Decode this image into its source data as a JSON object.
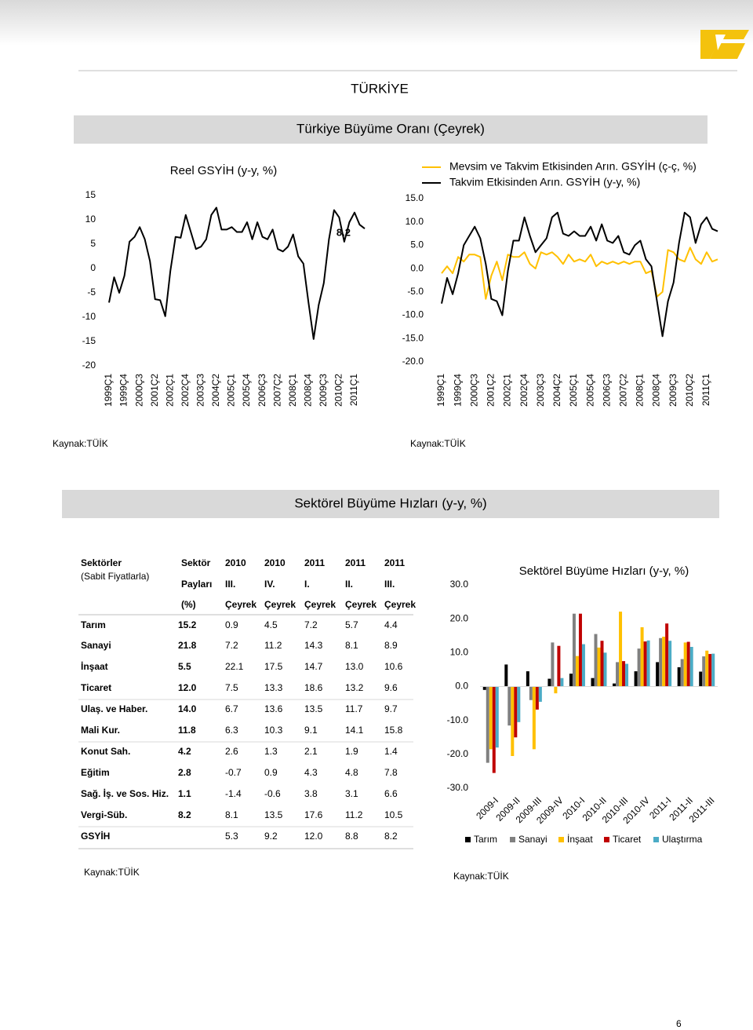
{
  "header": {
    "title": "TÜRKİYE"
  },
  "sections": [
    "Türkiye Büyüme Oranı (Çeyrek)",
    "Sektörel Büyüme Hızları (y-y, %)"
  ],
  "chart_data": [
    {
      "type": "line",
      "title": "Reel GSYİH (y-y, %)",
      "categories": [
        "1999Ç1",
        null,
        null,
        "1999Ç4",
        null,
        null,
        "2000Ç3",
        null,
        null,
        "2001Ç2",
        null,
        null,
        "2002Ç1",
        null,
        null,
        "2002Ç4",
        null,
        null,
        "2003Ç3",
        null,
        null,
        "2004Ç2",
        null,
        null,
        "2005Ç1",
        null,
        null,
        "2005Ç4",
        null,
        null,
        "2006Ç3",
        null,
        null,
        "2007Ç2",
        null,
        null,
        "2008Ç1",
        null,
        null,
        "2008Ç4",
        null,
        null,
        "2009Ç3",
        null,
        null,
        "2010Ç2",
        null,
        null,
        "2011Ç1",
        null,
        null
      ],
      "series": [
        {
          "color": "#000000",
          "values": [
            -7.0,
            -1.8,
            -5.0,
            -1.5,
            5.5,
            6.5,
            8.5,
            6.0,
            1.5,
            -6.3,
            -6.5,
            -9.8,
            -0.5,
            6.5,
            6.3,
            11.0,
            7.5,
            4.0,
            4.5,
            6.0,
            11.0,
            12.5,
            8.0,
            8.0,
            8.5,
            7.5,
            7.5,
            9.5,
            6.0,
            9.5,
            6.5,
            6.0,
            8.0,
            4.0,
            3.5,
            4.5,
            7.0,
            2.5,
            1.0,
            -7.0,
            -14.5,
            -7.5,
            -3.0,
            6.0,
            12.0,
            10.5,
            5.5,
            9.5,
            11.5,
            9.0,
            8.2
          ]
        }
      ],
      "annotation": "8.2",
      "ylim": [
        -20,
        15
      ],
      "yticks": [
        15,
        10,
        5,
        0,
        -5,
        -10,
        -15,
        -20
      ]
    },
    {
      "type": "line",
      "categories": [
        "1999Ç1",
        null,
        null,
        "1999Ç4",
        null,
        null,
        "2000Ç3",
        null,
        null,
        "2001Ç2",
        null,
        null,
        "2002Ç1",
        null,
        null,
        "2002Ç4",
        null,
        null,
        "2003Ç3",
        null,
        null,
        "2004Ç2",
        null,
        null,
        "2005Ç1",
        null,
        null,
        "2005Ç4",
        null,
        null,
        "2006Ç3",
        null,
        null,
        "2007Ç2",
        null,
        null,
        "2008Ç1",
        null,
        null,
        "2008Ç4",
        null,
        null,
        "2009Ç3",
        null,
        null,
        "2010Ç2",
        null,
        null,
        "2011Ç1",
        null,
        null
      ],
      "series": [
        {
          "name": "Mevsim ve Takvim Etkisinden Arın. GSYİH (ç-ç, %)",
          "color": "#ffc000",
          "values": [
            -1.0,
            0.5,
            -1.0,
            2.5,
            1.5,
            3.0,
            3.0,
            2.5,
            -6.5,
            -1.5,
            1.5,
            -2.5,
            3.0,
            2.5,
            2.5,
            3.5,
            1.0,
            0.0,
            3.5,
            3.0,
            3.5,
            2.5,
            1.0,
            3.0,
            1.5,
            2.0,
            1.5,
            3.0,
            0.5,
            1.5,
            1.0,
            1.5,
            1.0,
            1.5,
            1.0,
            1.5,
            1.5,
            -1.0,
            -0.5,
            -6.0,
            -5.0,
            4.0,
            3.5,
            2.0,
            1.5,
            4.5,
            2.0,
            1.0,
            3.5,
            1.5,
            2.0
          ]
        },
        {
          "name": "Takvim Etkisinden Arın. GSYİH (y-y, %)",
          "color": "#000000",
          "values": [
            -7.5,
            -2.0,
            -5.5,
            -1.0,
            5.0,
            7.0,
            9.0,
            6.5,
            1.0,
            -6.5,
            -7.0,
            -10.0,
            -0.5,
            6.0,
            6.0,
            11.0,
            7.0,
            3.5,
            5.0,
            6.5,
            11.0,
            12.0,
            7.5,
            7.0,
            8.0,
            7.0,
            7.0,
            9.0,
            6.0,
            9.5,
            6.0,
            5.5,
            7.0,
            3.5,
            3.0,
            5.0,
            6.0,
            2.0,
            0.5,
            -7.0,
            -14.5,
            -7.0,
            -3.0,
            5.5,
            12.0,
            11.0,
            5.5,
            9.5,
            11.0,
            8.5,
            8.0
          ]
        }
      ],
      "legend": "top",
      "ylim": [
        -20,
        15
      ],
      "yticks": [
        {
          "value": 15,
          "label": "15.0"
        },
        {
          "value": 10,
          "label": "10.0"
        },
        {
          "value": 5,
          "label": "5.0"
        },
        {
          "value": 0,
          "label": "0.0"
        },
        {
          "value": -5,
          "label": "-5.0"
        },
        {
          "value": -10,
          "label": "-10.0"
        },
        {
          "value": -15,
          "label": "-15.0"
        },
        {
          "value": -20,
          "label": "-20.0"
        }
      ]
    },
    {
      "type": "bar",
      "title": "Sektörel Büyüme Hızları (y-y, %)",
      "categories": [
        "2009-I",
        "2009-II",
        "2009-III",
        "2009-IV",
        "2010-I",
        "2010-II",
        "2010-III",
        "2010-IV",
        "2011-I",
        "2011-II",
        "2011-III"
      ],
      "series": [
        {
          "name": "Tarım",
          "color": "#000000",
          "values": [
            -1.0,
            6.5,
            4.5,
            2.3,
            3.8,
            2.5,
            0.9,
            4.5,
            7.2,
            5.7,
            4.4
          ]
        },
        {
          "name": "Sanayi",
          "color": "#808080",
          "values": [
            -22.5,
            -11.5,
            -4.0,
            13.0,
            21.5,
            15.5,
            7.2,
            11.2,
            14.3,
            8.1,
            8.9
          ]
        },
        {
          "name": "İnşaat",
          "color": "#ffc000",
          "values": [
            -18.5,
            -20.5,
            -18.5,
            -2.0,
            9.0,
            11.5,
            22.1,
            17.5,
            14.7,
            13.0,
            10.6
          ]
        },
        {
          "name": "Ticaret",
          "color": "#c00000",
          "values": [
            -25.5,
            -15.0,
            -6.8,
            12.0,
            21.5,
            13.5,
            7.5,
            13.3,
            18.6,
            13.2,
            9.6
          ]
        },
        {
          "name": "Ulaştırma",
          "color": "#4bacc6",
          "values": [
            -18.0,
            -10.5,
            -4.5,
            2.5,
            12.5,
            10.0,
            6.7,
            13.6,
            13.5,
            11.7,
            9.7
          ]
        }
      ],
      "legend": "bottom",
      "ylim": [
        -30,
        30
      ],
      "yticks": [
        {
          "value": 30,
          "label": "30.0"
        },
        {
          "value": 20,
          "label": "20.0"
        },
        {
          "value": 10,
          "label": "10.0"
        },
        {
          "value": 0,
          "label": "0.0"
        },
        {
          "value": -10,
          "label": "-10.0"
        },
        {
          "value": -20,
          "label": "-20.0"
        },
        {
          "value": -30,
          "label": "-30.0"
        }
      ]
    }
  ],
  "table": {
    "header": [
      [
        "Sektörler",
        "(Sabit Fiyatlarla)"
      ],
      [
        "Sektör",
        "Payları",
        "(%)"
      ],
      [
        "2010",
        "III.",
        "Çeyrek"
      ],
      [
        "2010",
        "IV.",
        "Çeyrek"
      ],
      [
        "2011",
        "I.",
        "Çeyrek"
      ],
      [
        "2011",
        "II.",
        "Çeyrek"
      ],
      [
        "2011",
        "III.",
        "Çeyrek"
      ]
    ],
    "rows": [
      [
        "Tarım",
        "15.2",
        "0.9",
        "4.5",
        "7.2",
        "5.7",
        "4.4"
      ],
      [
        "Sanayi",
        "21.8",
        "7.2",
        "11.2",
        "14.3",
        "8.1",
        "8.9"
      ],
      [
        "İnşaat",
        "5.5",
        "22.1",
        "17.5",
        "14.7",
        "13.0",
        "10.6"
      ],
      [
        "Ticaret",
        "12.0",
        "7.5",
        "13.3",
        "18.6",
        "13.2",
        "9.6"
      ],
      [
        "Ulaş. ve Haber.",
        "14.0",
        "6.7",
        "13.6",
        "13.5",
        "11.7",
        "9.7"
      ],
      [
        "Mali Kur.",
        "11.8",
        "6.3",
        "10.3",
        "9.1",
        "14.1",
        "15.8"
      ],
      [
        "Konut Sah.",
        "4.2",
        "2.6",
        "1.3",
        "2.1",
        "1.9",
        "1.4"
      ],
      [
        "Eğitim",
        "2.8",
        "-0.7",
        "0.9",
        "4.3",
        "4.8",
        "7.8"
      ],
      [
        "Sağ. İş. ve Sos. Hiz.",
        "1.1",
        "-1.4",
        "-0.6",
        "3.8",
        "3.1",
        "6.6"
      ],
      [
        "Vergi-Süb.",
        "8.2",
        "8.1",
        "13.5",
        "17.6",
        "11.2",
        "10.5"
      ],
      [
        "GSYİH",
        null,
        "5.3",
        "9.2",
        "12.0",
        "8.8",
        "8.2"
      ]
    ]
  },
  "sources": [
    "Kaynak:TÜİK",
    "Kaynak:TÜİK",
    "Kaynak:TÜİK",
    "Kaynak:TÜİK"
  ],
  "page_number": "6"
}
